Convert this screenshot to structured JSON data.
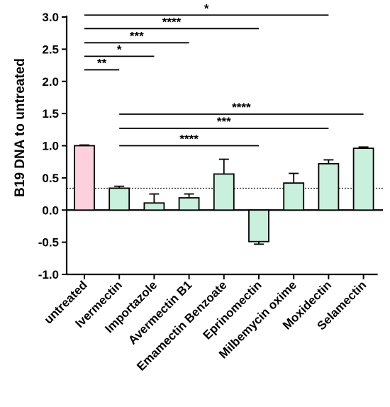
{
  "chart_data": {
    "type": "bar",
    "ylabel": "B19 DNA to untreated",
    "ylim": [
      -1.0,
      3.0
    ],
    "yticks": [
      -1.0,
      -0.5,
      0.0,
      0.5,
      1.0,
      1.5,
      2.0,
      2.5,
      3.0
    ],
    "ytick_labels": [
      "-1.0",
      "-0.5",
      "0.0",
      "0.5",
      "1.0",
      "1.5",
      "2.0",
      "2.5",
      "3.0"
    ],
    "categories": [
      "untreated",
      "Ivermectin",
      "Importazole",
      "Avermectin B1",
      "Emamectin Benzoate",
      "Eprinomectin",
      "Milbemycin oxime",
      "Moxidectin",
      "Selamectin"
    ],
    "values": [
      1.0,
      0.34,
      0.11,
      0.19,
      0.56,
      -0.49,
      0.42,
      0.72,
      0.96
    ],
    "errors": [
      0.0,
      0.03,
      0.14,
      0.06,
      0.23,
      0.04,
      0.15,
      0.06,
      0.02
    ],
    "colors": [
      "#fcd0dc",
      "#c8f0dc",
      "#c8f0dc",
      "#c8f0dc",
      "#c8f0dc",
      "#c8f0dc",
      "#c8f0dc",
      "#c8f0dc",
      "#c8f0dc"
    ],
    "reference_line": 0.34,
    "significance": [
      {
        "from": 0,
        "to": 1,
        "y": 2.18,
        "label": "**"
      },
      {
        "from": 0,
        "to": 2,
        "y": 2.39,
        "label": "*"
      },
      {
        "from": 0,
        "to": 3,
        "y": 2.6,
        "label": "***"
      },
      {
        "from": 0,
        "to": 5,
        "y": 2.82,
        "label": "****"
      },
      {
        "from": 0,
        "to": 7,
        "y": 3.03,
        "label": "*"
      },
      {
        "from": 1,
        "to": 5,
        "y": 1.0,
        "label": "****"
      },
      {
        "from": 1,
        "to": 7,
        "y": 1.27,
        "label": "***"
      },
      {
        "from": 1,
        "to": 8,
        "y": 1.49,
        "label": "****"
      }
    ]
  }
}
